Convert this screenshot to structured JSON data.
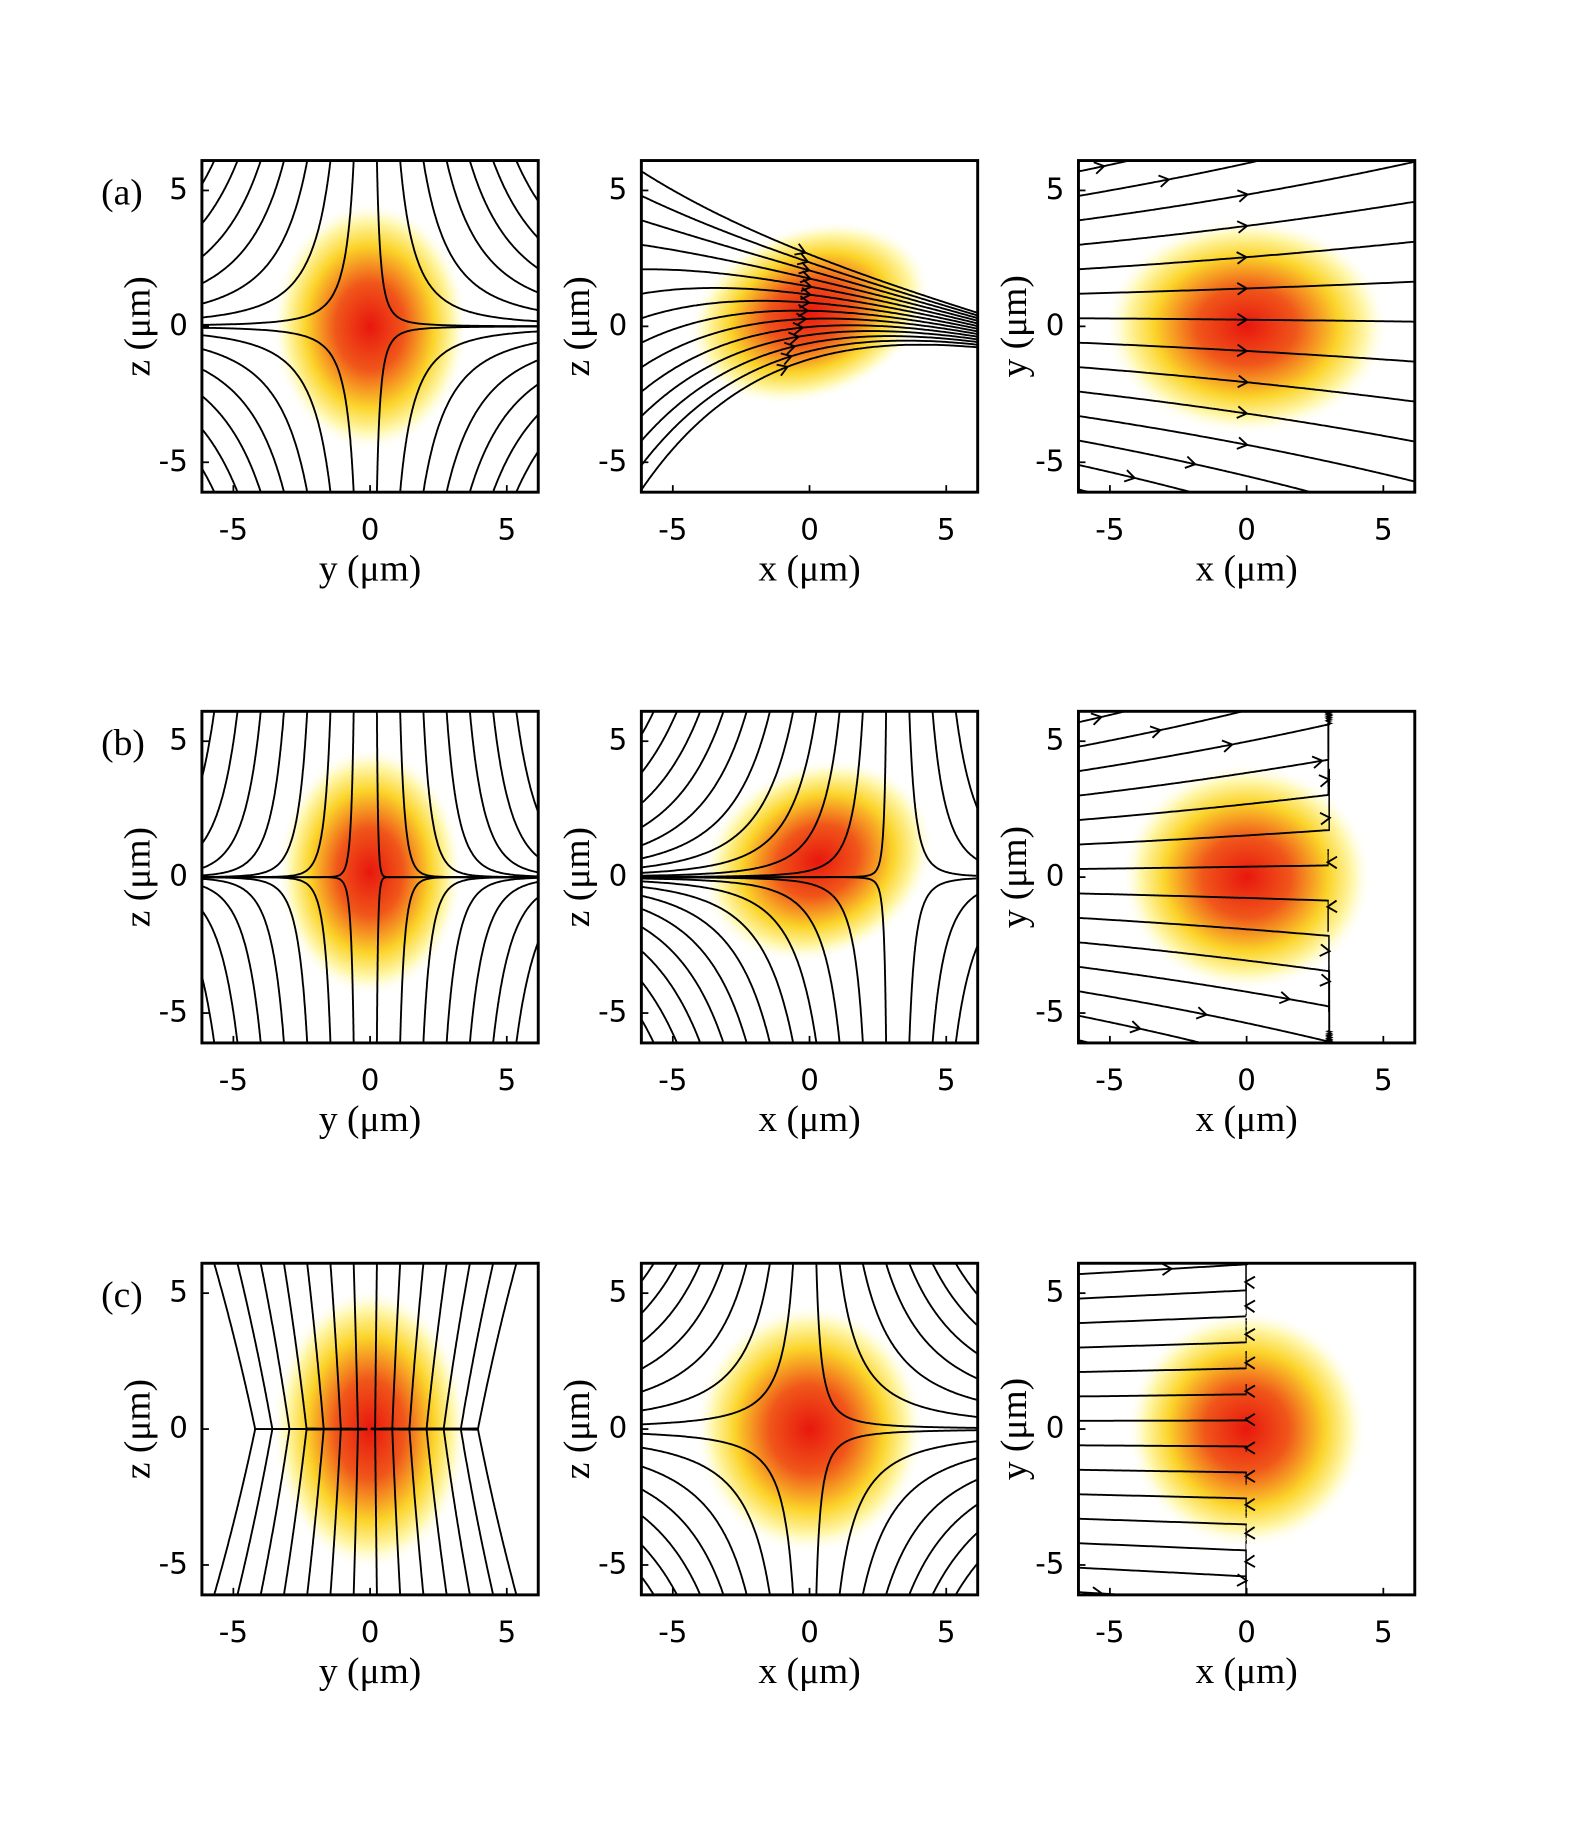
{
  "chart_data": [
    {
      "type": "streamplot",
      "panel_label": "(a)",
      "xlabel": "y (μm)",
      "ylabel": "z (μm)",
      "xlim": [
        -6.15,
        6.15
      ],
      "ylim": [
        -6.1,
        6.1
      ],
      "xticks": [
        -5,
        0,
        5
      ],
      "yticks": [
        -5,
        0,
        5
      ]
    },
    {
      "type": "streamplot",
      "xlabel": "x (μm)",
      "ylabel": "z (μm)",
      "xlim": [
        -6.15,
        6.15
      ],
      "ylim": [
        -6.1,
        6.1
      ],
      "xticks": [
        -5,
        0,
        5
      ],
      "yticks": [
        -5,
        0,
        5
      ]
    },
    {
      "type": "streamplot",
      "xlabel": "x (μm)",
      "ylabel": "y (μm)",
      "xlim": [
        -6.15,
        6.15
      ],
      "ylim": [
        -6.1,
        6.1
      ],
      "xticks": [
        -5,
        0,
        5
      ],
      "yticks": [
        -5,
        0,
        5
      ]
    },
    {
      "type": "streamplot",
      "panel_label": "(b)",
      "xlabel": "y (μm)",
      "ylabel": "z (μm)",
      "xlim": [
        -6.15,
        6.15
      ],
      "ylim": [
        -6.1,
        6.1
      ],
      "xticks": [
        -5,
        0,
        5
      ],
      "yticks": [
        -5,
        0,
        5
      ]
    },
    {
      "type": "streamplot",
      "xlabel": "x (μm)",
      "ylabel": "z (μm)",
      "xlim": [
        -6.15,
        6.15
      ],
      "ylim": [
        -6.1,
        6.1
      ],
      "xticks": [
        -5,
        0,
        5
      ],
      "yticks": [
        -5,
        0,
        5
      ]
    },
    {
      "type": "streamplot",
      "xlabel": "x (μm)",
      "ylabel": "y (μm)",
      "xlim": [
        -6.15,
        6.15
      ],
      "ylim": [
        -6.1,
        6.1
      ],
      "xticks": [
        -5,
        0,
        5
      ],
      "yticks": [
        -5,
        0,
        5
      ]
    },
    {
      "type": "streamplot",
      "panel_label": "(c)",
      "xlabel": "y (μm)",
      "ylabel": "z (μm)",
      "xlim": [
        -6.15,
        6.15
      ],
      "ylim": [
        -6.1,
        6.1
      ],
      "xticks": [
        -5,
        0,
        5
      ],
      "yticks": [
        -5,
        0,
        5
      ]
    },
    {
      "type": "streamplot",
      "xlabel": "x (μm)",
      "ylabel": "z (μm)",
      "xlim": [
        -6.15,
        6.15
      ],
      "ylim": [
        -6.1,
        6.1
      ],
      "xticks": [
        -5,
        0,
        5
      ],
      "yticks": [
        -5,
        0,
        5
      ]
    },
    {
      "type": "streamplot",
      "xlabel": "x (μm)",
      "ylabel": "y (μm)",
      "xlim": [
        -6.15,
        6.15
      ],
      "ylim": [
        -6.1,
        6.1
      ],
      "xticks": [
        -5,
        0,
        5
      ],
      "yticks": [
        -5,
        0,
        5
      ]
    }
  ]
}
